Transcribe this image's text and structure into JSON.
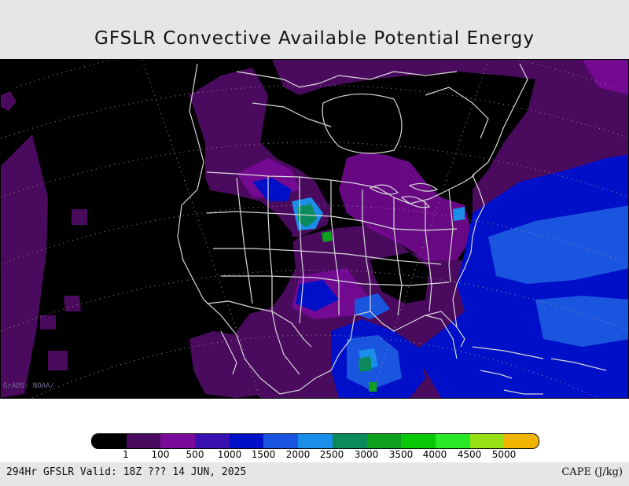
{
  "title": "GFSLR Convective Available Potential Energy",
  "watermark": "GrADS: NOAA/",
  "footer": {
    "valid": "294Hr GFSLR Valid: 18Z ??? 14 JUN, 2025",
    "units": "CAPE (J/kg)"
  },
  "colors": {
    "land_outline": "#d8d8d8",
    "header_bg": "#e6e6e6"
  },
  "colorbar": {
    "colors": [
      "#000000",
      "#4a0a5e",
      "#7a0a9a",
      "#3a10b0",
      "#0010c8",
      "#1a55e0",
      "#1a8ee8",
      "#0a8a5a",
      "#0ca01c",
      "#08c808",
      "#28e828",
      "#98e014",
      "#f0b400"
    ],
    "labels": [
      "1",
      "100",
      "500",
      "1000",
      "1500",
      "2000",
      "2500",
      "3000",
      "3500",
      "4000",
      "4500",
      "5000"
    ]
  }
}
